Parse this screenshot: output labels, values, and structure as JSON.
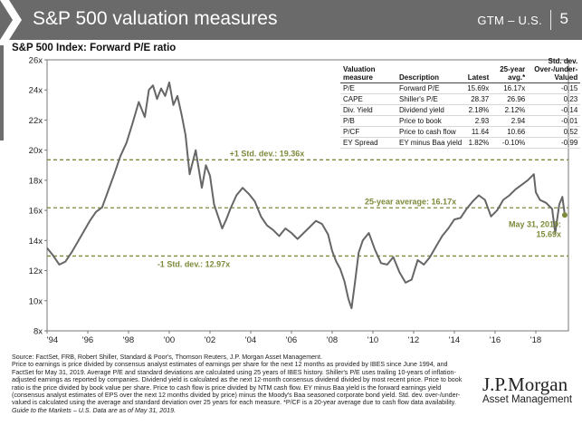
{
  "header": {
    "title": "S&P 500 valuation measures",
    "section": "GTM – U.S.",
    "page_number": "5"
  },
  "chart_data": {
    "type": "line",
    "title": "S&P 500 Index: Forward P/E ratio",
    "xlabel": "",
    "ylabel": "",
    "xlim": [
      1994,
      2019.6
    ],
    "ylim": [
      8,
      26
    ],
    "y_ticks": [
      8,
      10,
      12,
      14,
      16,
      18,
      20,
      22,
      24,
      26
    ],
    "y_tick_labels": [
      "8x",
      "10x",
      "12x",
      "14x",
      "16x",
      "18x",
      "20x",
      "22x",
      "24x",
      "26x"
    ],
    "x_ticks": [
      1994,
      1996,
      1998,
      2000,
      2002,
      2004,
      2006,
      2008,
      2010,
      2012,
      2014,
      2016,
      2018
    ],
    "x_tick_labels": [
      "'94",
      "'96",
      "'98",
      "'00",
      "'02",
      "'04",
      "'06",
      "'08",
      "'10",
      "'12",
      "'14",
      "'16",
      "'18"
    ],
    "grid": false,
    "line_color": "#666666",
    "reference_color": "#7d8a3a",
    "series": [
      {
        "x": [
          1994.0,
          1994.3,
          1994.6,
          1994.9,
          1995.2,
          1995.5,
          1995.8,
          1996.1,
          1996.4,
          1996.7,
          1997.0,
          1997.3,
          1997.6,
          1997.9,
          1998.2,
          1998.5,
          1998.8,
          1999.0,
          1999.2,
          1999.4,
          1999.6,
          1999.8,
          2000.0,
          2000.2,
          2000.4,
          2000.6,
          2000.8,
          2001.0,
          2001.3,
          2001.6,
          2001.8,
          2002.0,
          2002.2,
          2002.4,
          2002.6,
          2002.8,
          2003.0,
          2003.3,
          2003.6,
          2003.9,
          2004.2,
          2004.5,
          2004.8,
          2005.1,
          2005.4,
          2005.7,
          2006.0,
          2006.3,
          2006.6,
          2006.9,
          2007.2,
          2007.5,
          2007.8,
          2008.0,
          2008.2,
          2008.4,
          2008.6,
          2008.8,
          2008.95,
          2009.1,
          2009.3,
          2009.5,
          2009.8,
          2010.1,
          2010.4,
          2010.7,
          2011.0,
          2011.3,
          2011.6,
          2011.9,
          2012.2,
          2012.5,
          2012.8,
          2013.1,
          2013.4,
          2013.7,
          2014.0,
          2014.3,
          2014.6,
          2014.9,
          2015.2,
          2015.5,
          2015.8,
          2016.1,
          2016.4,
          2016.7,
          2017.0,
          2017.3,
          2017.6,
          2017.9,
          2018.0,
          2018.2,
          2018.5,
          2018.8,
          2018.95,
          2019.15,
          2019.3,
          2019.42
        ],
        "values": [
          13.5,
          13.0,
          12.4,
          12.6,
          13.2,
          13.9,
          14.6,
          15.3,
          15.9,
          16.2,
          17.3,
          18.4,
          19.6,
          20.5,
          21.8,
          23.2,
          22.2,
          24.0,
          24.3,
          23.4,
          24.1,
          23.6,
          24.5,
          23.0,
          23.6,
          22.4,
          21.0,
          18.4,
          20.0,
          17.5,
          19.0,
          18.3,
          16.4,
          15.6,
          14.8,
          15.4,
          16.1,
          17.0,
          17.5,
          17.1,
          16.6,
          15.6,
          15.0,
          14.7,
          14.3,
          14.8,
          14.5,
          14.1,
          14.5,
          14.9,
          15.3,
          15.1,
          14.4,
          13.3,
          12.6,
          12.1,
          11.3,
          10.1,
          9.5,
          11.0,
          13.2,
          14.0,
          14.5,
          13.4,
          12.5,
          12.4,
          12.9,
          11.9,
          11.2,
          11.4,
          12.7,
          12.4,
          12.9,
          13.6,
          14.3,
          14.8,
          15.4,
          15.5,
          16.1,
          16.6,
          17.0,
          16.7,
          15.6,
          16.0,
          16.7,
          17.0,
          17.4,
          17.7,
          18.0,
          18.4,
          17.2,
          16.7,
          16.5,
          16.1,
          14.5,
          16.4,
          16.9,
          15.69
        ]
      }
    ],
    "reference_lines": [
      {
        "value": 19.36,
        "label": "+1 Std. dev.: 19.36x"
      },
      {
        "value": 16.17,
        "label": "25-year average: 16.17x"
      },
      {
        "value": 12.97,
        "label": "-1 Std. dev.: 12.97x"
      }
    ],
    "annotation": {
      "x": 2019.42,
      "y": 15.69,
      "label_line1": "May 31, 2019:",
      "label_line2": "15.69x"
    }
  },
  "table": {
    "headers": [
      "Valuation measure",
      "Description",
      "Latest",
      "25-year avg.*",
      "Std. dev. Over-/under- Valued"
    ],
    "rows": [
      [
        "P/E",
        "Forward P/E",
        "15.69x",
        "16.17x",
        "-0.15"
      ],
      [
        "CAPE",
        "Shiller's P/E",
        "28.37",
        "26.96",
        "0.23"
      ],
      [
        "Div. Yield",
        "Dividend yield",
        "2.18%",
        "2.12%",
        "-0.14"
      ],
      [
        "P/B",
        "Price to book",
        "2.93",
        "2.94",
        "-0.01"
      ],
      [
        "P/CF",
        "Price to cash flow",
        "11.64",
        "10.66",
        "0.52"
      ],
      [
        "EY Spread",
        "EY minus Baa yield",
        "1.82%",
        "-0.10%",
        "-0.99"
      ]
    ]
  },
  "footer": {
    "source": "Source: FactSet, FRB, Robert Shiller, Standard & Poor's, Thomson Reuters, J.P. Morgan Asset Management.",
    "notes": "Price to earnings is price divided by consensus analyst estimates of earnings per share for the next 12 months as provided by IBES since June 1994, and FactSet for May 31, 2019. Average P/E and standard deviations are calculated using 25 years of IBES history. Shiller's P/E uses trailing 10-years of inflation-adjusted earnings as reported by companies. Dividend yield is calculated as the next 12-month consensus dividend divided by most recent price. Price to book ratio is the price divided by book value per share. Price to cash flow is price divided by NTM cash flow. EY minus Baa yield is the forward earnings yield (consensus analyst estimates of EPS over the next 12 months divided by price) minus the Moody's Baa seasoned corporate bond yield. Std. dev. over-/under-valued is calculated using the average and standard deviation over 25 years for each measure. *P/CF is a 20-year average due to cash flow data availability.",
    "guide": "Guide to the Markets – U.S. Data are as of May 31, 2019."
  },
  "logo": {
    "line1": "J.P.Morgan",
    "line2": "Asset Management"
  }
}
